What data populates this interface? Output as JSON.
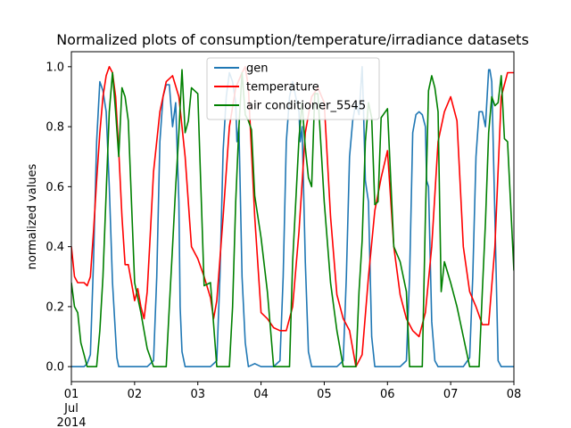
{
  "chart_data": {
    "type": "line",
    "title": "Normalized plots of consumption/temperature/irradiance datasets",
    "xlabel": "",
    "ylabel": "normalized values",
    "xlim": [
      0,
      7
    ],
    "ylim": [
      -0.05,
      1.05
    ],
    "x_ticks": [
      {
        "value": 0,
        "label": "01"
      },
      {
        "value": 1,
        "label": "02"
      },
      {
        "value": 2,
        "label": "03"
      },
      {
        "value": 3,
        "label": "04"
      },
      {
        "value": 4,
        "label": "05"
      },
      {
        "value": 5,
        "label": "06"
      },
      {
        "value": 6,
        "label": "07"
      },
      {
        "value": 7,
        "label": "08"
      }
    ],
    "x_sublabels": [
      "Jul",
      "2014"
    ],
    "y_ticks": [
      {
        "value": 0.0,
        "label": "0.0"
      },
      {
        "value": 0.2,
        "label": "0.2"
      },
      {
        "value": 0.4,
        "label": "0.4"
      },
      {
        "value": 0.6,
        "label": "0.6"
      },
      {
        "value": 0.8,
        "label": "0.8"
      },
      {
        "value": 1.0,
        "label": "1.0"
      }
    ],
    "legend_position": "top-center",
    "series": [
      {
        "name": "gen",
        "color": "#1f77b4",
        "x": [
          0,
          0.2,
          0.25,
          0.3,
          0.35,
          0.4,
          0.45,
          0.5,
          0.55,
          0.6,
          0.65,
          0.7,
          0.72,
          0.75,
          0.8,
          0.85,
          0.9,
          1.0,
          1.2,
          1.3,
          1.35,
          1.4,
          1.45,
          1.5,
          1.55,
          1.6,
          1.65,
          1.7,
          1.72,
          1.75,
          1.8,
          1.85,
          2.0,
          2.2,
          2.3,
          2.35,
          2.4,
          2.45,
          2.5,
          2.55,
          2.6,
          2.62,
          2.65,
          2.7,
          2.75,
          2.8,
          2.9,
          3.0,
          3.2,
          3.3,
          3.35,
          3.4,
          3.45,
          3.5,
          3.55,
          3.6,
          3.62,
          3.65,
          3.7,
          3.75,
          3.8,
          3.9,
          4.0,
          4.2,
          4.3,
          4.35,
          4.4,
          4.45,
          4.5,
          4.55,
          4.6,
          4.62,
          4.65,
          4.7,
          4.75,
          4.8,
          4.9,
          5.0,
          5.2,
          5.3,
          5.35,
          5.4,
          5.45,
          5.5,
          5.55,
          5.6,
          5.62,
          5.65,
          5.7,
          5.75,
          5.8,
          5.9,
          6.0,
          6.2,
          6.3,
          6.35,
          6.4,
          6.45,
          6.5,
          6.55,
          6.6,
          6.62,
          6.65,
          6.7,
          6.75,
          6.8,
          6.9,
          7.0
        ],
        "y": [
          0,
          0,
          0.01,
          0.04,
          0.35,
          0.75,
          0.95,
          0.92,
          0.85,
          0.6,
          0.28,
          0.1,
          0.03,
          0,
          0,
          0,
          0,
          0,
          0,
          0.02,
          0.3,
          0.75,
          0.9,
          0.94,
          0.94,
          0.8,
          0.88,
          0.55,
          0.2,
          0.05,
          0,
          0,
          0,
          0,
          0.02,
          0.3,
          0.72,
          0.9,
          0.98,
          0.95,
          0.88,
          0.75,
          0.8,
          0.3,
          0.08,
          0,
          0.01,
          0,
          0,
          0.02,
          0.3,
          0.75,
          0.9,
          0.95,
          0.9,
          0.85,
          0.75,
          0.8,
          0.35,
          0.05,
          0,
          0,
          0,
          0,
          0.02,
          0.3,
          0.7,
          0.82,
          0.88,
          0.84,
          1.0,
          0.86,
          0.62,
          0.55,
          0.1,
          0,
          0,
          0,
          0,
          0.02,
          0.3,
          0.78,
          0.84,
          0.85,
          0.84,
          0.8,
          0.62,
          0.6,
          0.15,
          0.02,
          0,
          0,
          0,
          0,
          0.03,
          0.3,
          0.7,
          0.85,
          0.85,
          0.8,
          0.99,
          0.99,
          0.95,
          0.5,
          0.02,
          0,
          0,
          0
        ]
      },
      {
        "name": "temperature",
        "color": "#ff0000",
        "x": [
          0,
          0.05,
          0.1,
          0.2,
          0.25,
          0.3,
          0.35,
          0.4,
          0.45,
          0.5,
          0.55,
          0.6,
          0.65,
          0.7,
          0.75,
          0.8,
          0.85,
          0.9,
          1.0,
          1.05,
          1.1,
          1.15,
          1.2,
          1.25,
          1.3,
          1.4,
          1.5,
          1.6,
          1.7,
          1.8,
          1.9,
          2.0,
          2.1,
          2.2,
          2.25,
          2.3,
          2.4,
          2.5,
          2.6,
          2.7,
          2.75,
          2.8,
          2.9,
          3.0,
          3.1,
          3.2,
          3.3,
          3.4,
          3.5,
          3.6,
          3.7,
          3.8,
          3.9,
          4.0,
          4.1,
          4.2,
          4.3,
          4.4,
          4.5,
          4.6,
          4.7,
          4.8,
          4.9,
          5.0,
          5.1,
          5.2,
          5.3,
          5.4,
          5.5,
          5.6,
          5.7,
          5.8,
          5.9,
          6.0,
          6.1,
          6.2,
          6.3,
          6.4,
          6.5,
          6.6,
          6.7,
          6.8,
          6.9,
          7.0
        ],
        "y": [
          0.4,
          0.3,
          0.28,
          0.28,
          0.27,
          0.3,
          0.45,
          0.62,
          0.78,
          0.9,
          0.97,
          1.0,
          0.98,
          0.9,
          0.72,
          0.5,
          0.34,
          0.34,
          0.22,
          0.26,
          0.2,
          0.16,
          0.25,
          0.45,
          0.65,
          0.85,
          0.95,
          0.97,
          0.9,
          0.7,
          0.4,
          0.36,
          0.3,
          0.23,
          0.16,
          0.22,
          0.5,
          0.8,
          0.93,
          0.98,
          1.0,
          0.93,
          0.5,
          0.18,
          0.16,
          0.13,
          0.12,
          0.12,
          0.2,
          0.45,
          0.78,
          0.9,
          0.93,
          0.88,
          0.5,
          0.24,
          0.16,
          0.12,
          0.0,
          0.04,
          0.3,
          0.52,
          0.63,
          0.72,
          0.4,
          0.24,
          0.16,
          0.12,
          0.1,
          0.18,
          0.4,
          0.75,
          0.85,
          0.9,
          0.82,
          0.4,
          0.25,
          0.2,
          0.14,
          0.14,
          0.4,
          0.9,
          0.98,
          0.98
        ],
        "y_fixup": true
      },
      {
        "name": "air conditioner_5545",
        "color": "#008000",
        "x": [
          0,
          0.05,
          0.1,
          0.15,
          0.2,
          0.25,
          0.3,
          0.35,
          0.4,
          0.45,
          0.5,
          0.55,
          0.6,
          0.65,
          0.7,
          0.75,
          0.8,
          0.85,
          0.9,
          1.0,
          1.1,
          1.2,
          1.3,
          1.35,
          1.4,
          1.45,
          1.5,
          1.55,
          1.6,
          1.65,
          1.7,
          1.75,
          1.8,
          1.85,
          1.9,
          2.0,
          2.1,
          2.2,
          2.3,
          2.35,
          2.4,
          2.45,
          2.5,
          2.55,
          2.6,
          2.65,
          2.7,
          2.75,
          2.8,
          2.85,
          2.9,
          3.0,
          3.1,
          3.2,
          3.3,
          3.35,
          3.4,
          3.45,
          3.5,
          3.55,
          3.6,
          3.65,
          3.7,
          3.75,
          3.8,
          3.85,
          3.9,
          4.0,
          4.1,
          4.2,
          4.3,
          4.35,
          4.4,
          4.45,
          4.5,
          4.55,
          4.6,
          4.65,
          4.7,
          4.75,
          4.8,
          4.85,
          4.9,
          5.0,
          5.1,
          5.2,
          5.3,
          5.35,
          5.4,
          5.45,
          5.5,
          5.55,
          5.6,
          5.65,
          5.7,
          5.75,
          5.8,
          5.85,
          5.9,
          6.0,
          6.1,
          6.2,
          6.3,
          6.35,
          6.4,
          6.45,
          6.5,
          6.55,
          6.6,
          6.65,
          6.7,
          6.75,
          6.8,
          6.85,
          6.9,
          7.0
        ],
        "y": [
          0.28,
          0.2,
          0.18,
          0.08,
          0.04,
          0.0,
          0.0,
          0.0,
          0.0,
          0.12,
          0.3,
          0.58,
          0.85,
          0.98,
          0.85,
          0.7,
          0.93,
          0.9,
          0.82,
          0.28,
          0.18,
          0.06,
          0.0,
          0.0,
          0.0,
          0.0,
          0.0,
          0.2,
          0.4,
          0.6,
          0.78,
          0.99,
          0.78,
          0.82,
          0.93,
          0.91,
          0.27,
          0.28,
          0.0,
          0.0,
          0.0,
          0.0,
          0.0,
          0.2,
          0.55,
          0.8,
          0.98,
          0.84,
          0.82,
          0.79,
          0.57,
          0.43,
          0.25,
          0.0,
          0.0,
          0.0,
          0.0,
          0.0,
          0.35,
          0.55,
          0.76,
          0.88,
          0.73,
          0.63,
          0.6,
          0.91,
          0.91,
          0.55,
          0.28,
          0.12,
          0.0,
          0.0,
          0.0,
          0.0,
          0.0,
          0.25,
          0.42,
          0.75,
          0.88,
          0.83,
          0.54,
          0.55,
          0.83,
          0.86,
          0.4,
          0.35,
          0.25,
          0.0,
          0.0,
          0.0,
          0.0,
          0.0,
          0.5,
          0.92,
          0.97,
          0.93,
          0.85,
          0.25,
          0.35,
          0.28,
          0.2,
          0.1,
          0.0,
          0.0,
          0.0,
          0.0,
          0.25,
          0.48,
          0.78,
          0.9,
          0.87,
          0.88,
          0.97,
          0.76,
          0.75,
          0.32
        ]
      }
    ]
  }
}
